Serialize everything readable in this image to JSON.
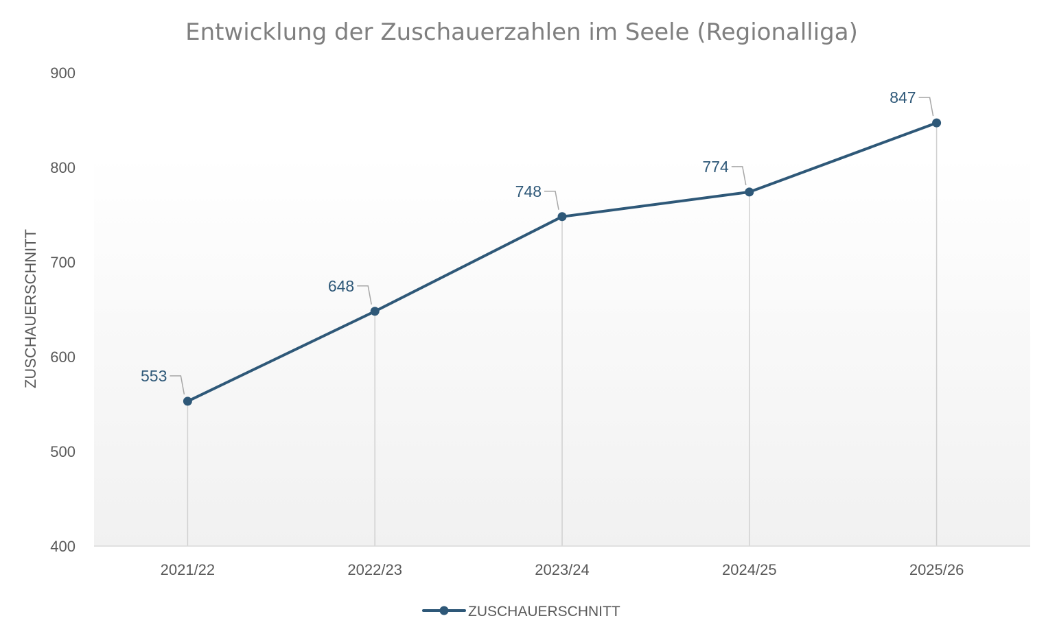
{
  "chart_data": {
    "type": "line",
    "title": "Entwicklung der Zuschauerzahlen im Seele (Regionalliga)",
    "ylabel": "ZUSCHAUERSCHNITT",
    "xlabel": "",
    "categories": [
      "2021/22",
      "2022/23",
      "2023/24",
      "2024/25",
      "2025/26"
    ],
    "series": [
      {
        "name": "ZUSCHAUERSCHNITT",
        "values": [
          553,
          648,
          748,
          774,
          847
        ]
      }
    ],
    "data_labels": [
      "553",
      "648",
      "748",
      "774",
      "847"
    ],
    "ylim": [
      400,
      900
    ],
    "yticks": [
      400,
      500,
      600,
      700,
      800,
      900
    ],
    "ytick_labels": [
      "400",
      "500",
      "600",
      "700",
      "800",
      "900"
    ],
    "grid": false,
    "drop_lines": true,
    "legend_position": "bottom",
    "colors": {
      "series": "#2e5878",
      "drop_line": "#d0d0d0",
      "axis": "#d9d9d9",
      "leader": "#a6a6a6"
    }
  }
}
